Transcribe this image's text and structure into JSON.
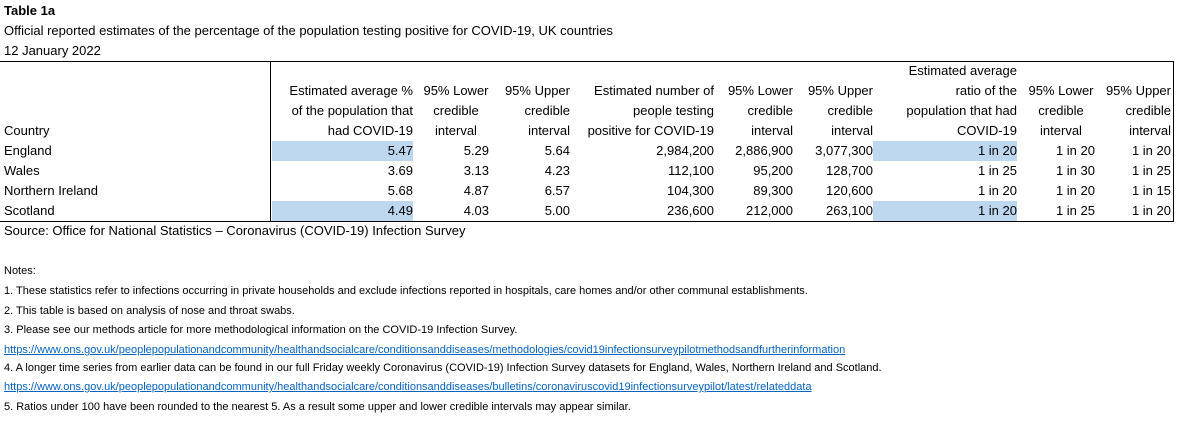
{
  "title": "Table 1a",
  "subtitle": "Official reported estimates of the percentage of the population testing positive for COVID-19, UK countries",
  "date": "12 January 2022",
  "headers": {
    "country": "Country",
    "est_pct": [
      "Estimated average %",
      "of the population that",
      "had COVID-19"
    ],
    "lower1": [
      "95% Lower",
      "credible",
      "interval"
    ],
    "upper1": [
      "95% Upper",
      "credible",
      "interval"
    ],
    "est_num": [
      "Estimated number of",
      "people testing",
      "positive for COVID-19"
    ],
    "lower2": [
      "95% Lower",
      "credible",
      "interval"
    ],
    "upper2": [
      "95% Upper",
      "credible",
      "interval"
    ],
    "ratio": [
      "Estimated average",
      "ratio of the",
      "population that had",
      "COVID-19"
    ],
    "lower3": [
      "95% Lower",
      "credible",
      "interval"
    ],
    "upper3": [
      "95% Upper",
      "credible",
      "interval"
    ]
  },
  "rows": [
    {
      "country": "England",
      "est_pct": "5.47",
      "lower1": "5.29",
      "upper1": "5.64",
      "est_num": "2,984,200",
      "lower2": "2,886,900",
      "upper2": "3,077,300",
      "ratio": "1 in 20",
      "lower3": "1 in 20",
      "upper3": "1 in 20"
    },
    {
      "country": "Wales",
      "est_pct": "3.69",
      "lower1": "3.13",
      "upper1": "4.23",
      "est_num": "112,100",
      "lower2": "95,200",
      "upper2": "128,700",
      "ratio": "1 in 25",
      "lower3": "1 in 30",
      "upper3": "1 in 25"
    },
    {
      "country": "Northern Ireland",
      "est_pct": "5.68",
      "lower1": "4.87",
      "upper1": "6.57",
      "est_num": "104,300",
      "lower2": "89,300",
      "upper2": "120,600",
      "ratio": "1 in 20",
      "lower3": "1 in 20",
      "upper3": "1 in 15"
    },
    {
      "country": "Scotland",
      "est_pct": "4.49",
      "lower1": "4.03",
      "upper1": "5.00",
      "est_num": "236,600",
      "lower2": "212,000",
      "upper2": "263,100",
      "ratio": "1 in 20",
      "lower3": "1 in 25",
      "upper3": "1 in 20"
    }
  ],
  "source": "Source: Office for National Statistics – Coronavirus (COVID-19) Infection Survey",
  "notes": {
    "heading": "Notes:",
    "n1": "1. These statistics refer to infections occurring in private households and exclude infections reported in hospitals, care homes and/or other communal establishments.",
    "n2": "2. This table is based on analysis of nose and throat swabs.",
    "n3": "3. Please see our methods article for more methodological information on the COVID-19 Infection Survey.",
    "link1": "https://www.ons.gov.uk/peoplepopulationandcommunity/healthandsocialcare/conditionsanddiseases/methodologies/covid19infectionsurveypilotmethodsandfurtherinformation",
    "n4": "4. A longer time series from earlier data can be found in our full Friday weekly Coronavirus (COVID-19) Infection Survey datasets for England, Wales, Northern Ireland and Scotland.",
    "link2": "https://www.ons.gov.uk/peoplepopulationandcommunity/healthandsocialcare/conditionsanddiseases/bulletins/coronaviruscovid19infectionsurveypilot/latest/relateddata",
    "n5": "5. Ratios under 100 have been rounded to the nearest 5. As a result some upper and lower credible intervals may appear similar."
  },
  "highlight_color": "#bdd7ee",
  "link_color": "#0563c1"
}
